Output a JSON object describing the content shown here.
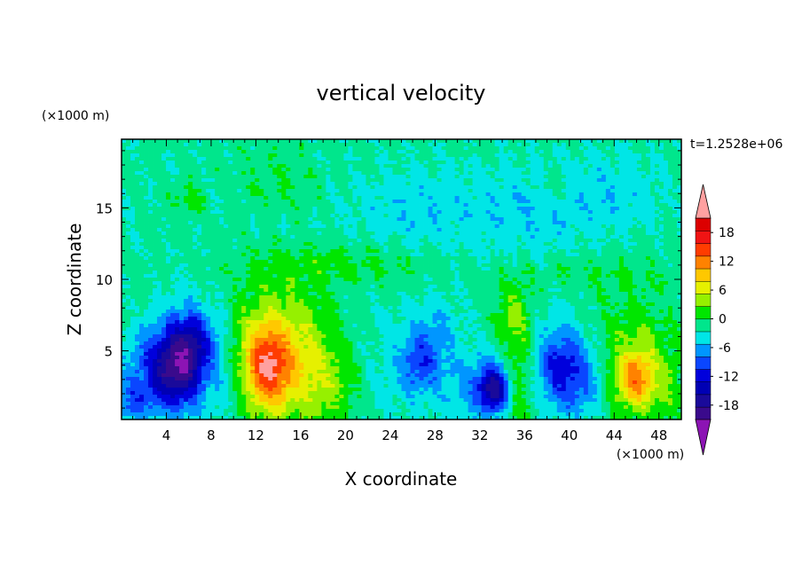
{
  "chart_data": {
    "type": "heatmap",
    "title": "vertical velocity",
    "xlabel": "X coordinate",
    "ylabel": "Z coordinate",
    "x_unit": "(×1000 m)",
    "y_unit": "(×1000 m)",
    "time_label": "t=1.2528e+06",
    "xlim": [
      0,
      50
    ],
    "ylim": [
      0.2,
      19.8
    ],
    "x_ticks": [
      4,
      8,
      12,
      16,
      20,
      24,
      28,
      32,
      36,
      40,
      44,
      48
    ],
    "x_tick_labels": [
      "4",
      "8",
      "12",
      "16",
      "20",
      "24",
      "28",
      "32",
      "36",
      "40",
      "44",
      "48"
    ],
    "y_ticks": [
      5,
      10,
      15
    ],
    "y_tick_labels": [
      "5",
      "10",
      "15"
    ],
    "colorbar": {
      "levels": [
        -21,
        -18,
        -15,
        -12,
        -9,
        -6,
        -3,
        0,
        3,
        6,
        9,
        12,
        15,
        18,
        21
      ],
      "tick_values": [
        -18,
        -12,
        -6,
        0,
        6,
        12,
        18
      ],
      "tick_labels": [
        "-18",
        "-12",
        "-6",
        "0",
        "6",
        "12",
        "18"
      ],
      "colors": [
        "#3a0a8c",
        "#1a0a9a",
        "#0000b4",
        "#0000dc",
        "#0a46ff",
        "#0096ff",
        "#00e6e6",
        "#00e68c",
        "#00e600",
        "#96f000",
        "#e6f000",
        "#ffc800",
        "#ff8200",
        "#ff3c00",
        "#f01414",
        "#dc0000"
      ],
      "under_color": "#8c14b4",
      "over_color": "#ffa0a0"
    },
    "background_value": 0.8,
    "features": [
      {
        "x": 5.0,
        "z": 3.6,
        "value": -14,
        "sx": 1.6,
        "sz": 1.8
      },
      {
        "x": 6.5,
        "z": 5.8,
        "value": -9,
        "sx": 1.2,
        "sz": 1.5
      },
      {
        "x": 4.0,
        "z": 4.5,
        "value": -8,
        "sx": 2.5,
        "sz": 2.5
      },
      {
        "x": 1.0,
        "z": 1.5,
        "value": -6,
        "sx": 1.2,
        "sz": 1.2
      },
      {
        "x": 13.0,
        "z": 3.8,
        "value": 14,
        "sx": 1.4,
        "sz": 2.0
      },
      {
        "x": 13.5,
        "z": 5.5,
        "value": 7,
        "sx": 3.0,
        "sz": 3.2
      },
      {
        "x": 16.5,
        "z": 3.5,
        "value": 5,
        "sx": 2.5,
        "sz": 3.0
      },
      {
        "x": 19.0,
        "z": 2.5,
        "value": 3,
        "sx": 2.0,
        "sz": 2.0
      },
      {
        "x": 9.0,
        "z": 4.0,
        "value": -3,
        "sx": 1.0,
        "sz": 3.0
      },
      {
        "x": 23.0,
        "z": 3.5,
        "value": -2,
        "sx": 2.0,
        "sz": 3.0
      },
      {
        "x": 26.5,
        "z": 4.0,
        "value": -7,
        "sx": 1.2,
        "sz": 1.5
      },
      {
        "x": 28.0,
        "z": 6.0,
        "value": -4,
        "sx": 1.5,
        "sz": 2.0
      },
      {
        "x": 30.0,
        "z": 2.5,
        "value": -2,
        "sx": 2.0,
        "sz": 2.0
      },
      {
        "x": 33.3,
        "z": 2.3,
        "value": -13,
        "sx": 0.9,
        "sz": 1.0
      },
      {
        "x": 33.0,
        "z": 2.5,
        "value": -6,
        "sx": 1.8,
        "sz": 1.6
      },
      {
        "x": 35.5,
        "z": 2.5,
        "value": 6,
        "sx": 1.0,
        "sz": 2.5
      },
      {
        "x": 35.0,
        "z": 7.5,
        "value": 5,
        "sx": 1.2,
        "sz": 2.0
      },
      {
        "x": 39.0,
        "z": 4.0,
        "value": -9,
        "sx": 1.6,
        "sz": 2.0
      },
      {
        "x": 41.0,
        "z": 3.0,
        "value": -6,
        "sx": 1.5,
        "sz": 2.0
      },
      {
        "x": 46.0,
        "z": 3.0,
        "value": 12,
        "sx": 1.2,
        "sz": 1.4
      },
      {
        "x": 46.0,
        "z": 4.5,
        "value": 5,
        "sx": 2.8,
        "sz": 3.0
      },
      {
        "x": 49.0,
        "z": 2.0,
        "value": 2,
        "sx": 1.0,
        "sz": 2.0
      },
      {
        "x": 26.0,
        "z": 15.0,
        "value": -3,
        "sx": 4.0,
        "sz": 2.0
      },
      {
        "x": 36.0,
        "z": 14.5,
        "value": -3,
        "sx": 4.0,
        "sz": 2.5
      },
      {
        "x": 44.0,
        "z": 16.0,
        "value": -3,
        "sx": 3.0,
        "sz": 2.0
      },
      {
        "x": 6.0,
        "z": 15.5,
        "value": 3,
        "sx": 1.0,
        "sz": 0.8
      },
      {
        "x": 14.0,
        "z": 17.0,
        "value": 2,
        "sx": 3.0,
        "sz": 1.5
      },
      {
        "x": 38.5,
        "z": 16.5,
        "value": 3,
        "sx": 0.8,
        "sz": 0.8
      },
      {
        "x": 20.0,
        "z": 11.0,
        "value": 3,
        "sx": 6.0,
        "sz": 1.0
      },
      {
        "x": 42.0,
        "z": 10.5,
        "value": 2,
        "sx": 5.0,
        "sz": 1.0
      },
      {
        "x": 2.0,
        "z": 7.5,
        "value": 2,
        "sx": 1.5,
        "sz": 1.5
      }
    ]
  }
}
